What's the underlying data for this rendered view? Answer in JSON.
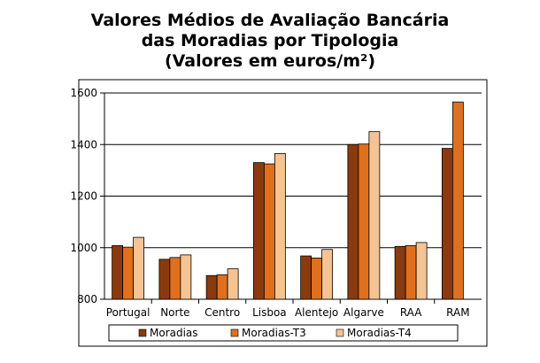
{
  "chart_data": {
    "type": "bar",
    "title_lines": [
      "Valores Médios de Avaliação Bancária",
      "das Moradias por Tipologia",
      "(Valores em euros/m²)"
    ],
    "categories": [
      "Portugal",
      "Norte",
      "Centro",
      "Lisboa",
      "Alentejo",
      "Algarve",
      "RAA",
      "RAM"
    ],
    "series": [
      {
        "name": "Moradias",
        "color": "#8B3A0E",
        "values": [
          1008,
          955,
          892,
          1330,
          968,
          1400,
          1005,
          1385
        ]
      },
      {
        "name": "Moradias-T3",
        "color": "#E0701E",
        "values": [
          1002,
          962,
          895,
          1325,
          960,
          1402,
          1008,
          1565
        ]
      },
      {
        "name": "Moradias-T4",
        "color": "#F6C493",
        "values": [
          1040,
          972,
          918,
          1365,
          993,
          1450,
          1020,
          null
        ]
      }
    ],
    "ylim": [
      800,
      1600
    ],
    "yticks": [
      800,
      1000,
      1200,
      1400,
      1600
    ],
    "grid": true,
    "legend_position": "bottom"
  }
}
